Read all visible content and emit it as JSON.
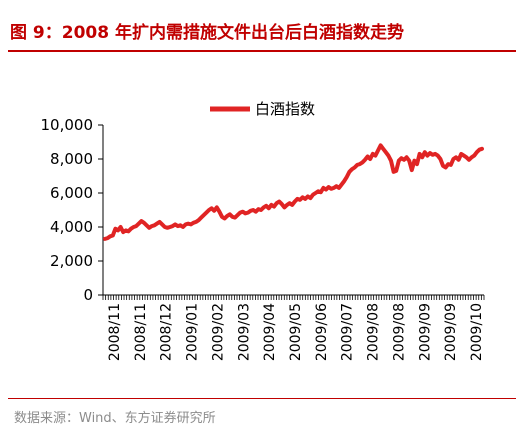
{
  "figure": {
    "title": "图 9：2008 年扩内需措施文件出台后白酒指数走势",
    "source": "数据来源：Wind、东方证券研究所"
  },
  "colors": {
    "accent": "#c00000",
    "series": "#e02424"
  },
  "chart_data": {
    "type": "line",
    "title": "",
    "xlabel": "",
    "ylabel": "",
    "ylim": [
      0,
      10000
    ],
    "yticks": [
      "10,000",
      "8,000",
      "6,000",
      "4,000",
      "2,000",
      "0"
    ],
    "yticks_values": [
      10000,
      8000,
      6000,
      4000,
      2000,
      0
    ],
    "xticks": [
      "2008/11",
      "2008/11",
      "2008/12",
      "2009/01",
      "2009/02",
      "2009/03",
      "2009/04",
      "2009/05",
      "2009/06",
      "2009/07",
      "2009/08",
      "2009/08",
      "2009/09",
      "2009/09",
      "2009/10"
    ],
    "legend": "top-center",
    "grid": false,
    "series": [
      {
        "name": "白酒指数",
        "values": [
          3300,
          3350,
          3450,
          3500,
          3900,
          3800,
          4000,
          3700,
          3800,
          3750,
          3900,
          4000,
          4050,
          4200,
          4350,
          4250,
          4100,
          3950,
          4050,
          4100,
          4200,
          4300,
          4150,
          4000,
          3950,
          4000,
          4050,
          4150,
          4050,
          4100,
          4000,
          4150,
          4200,
          4150,
          4250,
          4300,
          4400,
          4550,
          4700,
          4850,
          5000,
          5100,
          4950,
          5150,
          4900,
          4600,
          4500,
          4650,
          4750,
          4600,
          4550,
          4700,
          4850,
          4900,
          4800,
          4850,
          4950,
          5000,
          4900,
          5050,
          5000,
          5150,
          5250,
          5100,
          5300,
          5200,
          5400,
          5500,
          5350,
          5150,
          5300,
          5400,
          5300,
          5500,
          5650,
          5600,
          5750,
          5650,
          5800,
          5700,
          5900,
          6000,
          6100,
          6050,
          6300,
          6200,
          6350,
          6250,
          6300,
          6400,
          6300,
          6500,
          6700,
          6950,
          7250,
          7400,
          7500,
          7650,
          7700,
          7800,
          7950,
          8150,
          8000,
          8300,
          8200,
          8500,
          8800,
          8600,
          8400,
          8200,
          7900,
          7250,
          7300,
          7900,
          8050,
          7950,
          8100,
          7900,
          7350,
          7900,
          7700,
          8300,
          8100,
          8400,
          8200,
          8350,
          8250,
          8300,
          8200,
          8000,
          7600,
          7500,
          7700,
          7650,
          8000,
          8100,
          7950,
          8300,
          8200,
          8100,
          7950,
          8100,
          8200,
          8400,
          8550,
          8600
        ]
      }
    ]
  }
}
